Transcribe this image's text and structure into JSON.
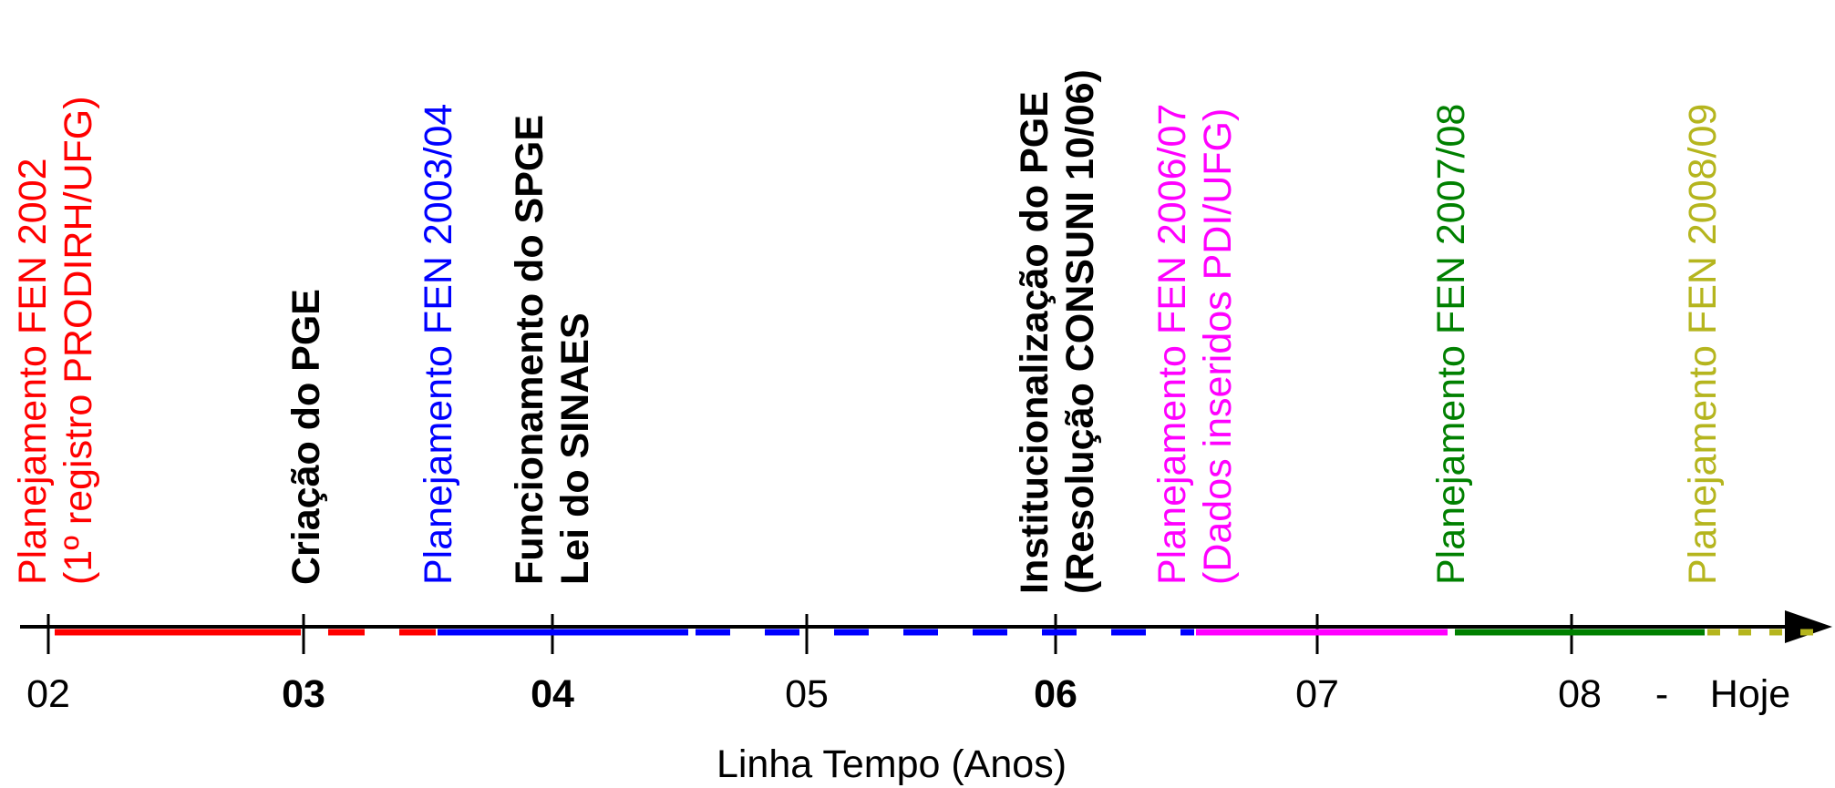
{
  "colors": {
    "black": "#000000",
    "red": "#ff0000",
    "blue": "#0000ff",
    "magenta": "#ff00ff",
    "green": "#008000",
    "olive": "#b5b51e"
  },
  "events": [
    {
      "id": "fen-2002",
      "plan_word": "Planejamento",
      "fen": "FEN",
      "year": "2002",
      "line2": "(1º registro PRODIRH/UFG)",
      "color": "#ff0000"
    },
    {
      "id": "criacao-pge",
      "line1": "Criação do PGE",
      "color": "#000000"
    },
    {
      "id": "fen-2003",
      "plan_word": "Planejamento",
      "fen": "FEN",
      "year": "2003/04",
      "color": "#0000ff"
    },
    {
      "id": "spge-sinaes",
      "line1": "Funcionamento do SPGE",
      "line2": "Lei do SINAES",
      "color": "#000000"
    },
    {
      "id": "inst-pge",
      "line1": "Institucionalização do PGE",
      "line2": "(Resolução CONSUNI 10/06)",
      "color": "#000000"
    },
    {
      "id": "fen-2006",
      "plan_word": "Planejamento",
      "fen": "FEN",
      "year": "2006/07",
      "line2": "(Dados inseridos PDI/UFG)",
      "color": "#ff00ff"
    },
    {
      "id": "fen-2007",
      "plan_word": "Planejamento",
      "fen": "FEN",
      "year": "2007/08",
      "color": "#008000"
    },
    {
      "id": "fen-2008",
      "plan_word": "Planejamento",
      "fen": "FEN",
      "year": "2008/09",
      "color": "#b5b51e"
    }
  ],
  "ticks": [
    {
      "label": "02",
      "bold": false
    },
    {
      "label": "03",
      "bold": true
    },
    {
      "label": "04",
      "bold": true
    },
    {
      "label": "05",
      "bold": false
    },
    {
      "label": "06",
      "bold": true
    },
    {
      "label": "07",
      "bold": false
    },
    {
      "label": "08",
      "bold": false
    }
  ],
  "end_labels": {
    "dash": "-",
    "today": "Hoje"
  },
  "axis_title": "Linha Tempo (Anos)"
}
